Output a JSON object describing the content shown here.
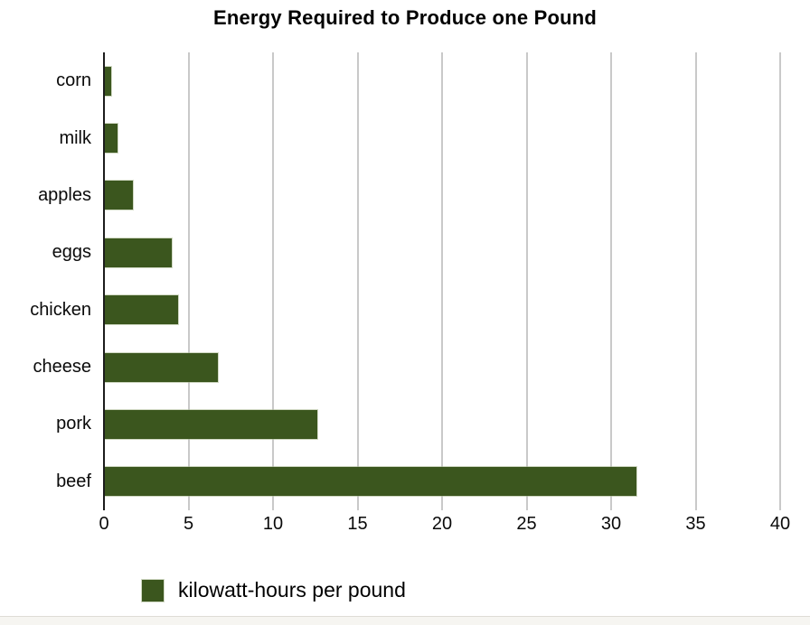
{
  "chart_data": {
    "type": "bar",
    "orientation": "horizontal",
    "title": "Energy Required to Produce one Pound",
    "categories": [
      "corn",
      "milk",
      "apples",
      "eggs",
      "chicken",
      "cheese",
      "pork",
      "beef"
    ],
    "values": [
      0.45,
      0.8,
      1.7,
      4.0,
      4.4,
      6.75,
      12.6,
      31.5
    ],
    "series_name": "kilowatt-hours per pound",
    "xlabel": "",
    "ylabel": "",
    "xlim": [
      0,
      40
    ],
    "xticks": [
      0,
      5,
      10,
      15,
      20,
      25,
      30,
      35,
      40
    ],
    "grid": "vertical-gridlines-on",
    "legend_position": "bottom-left",
    "bar_color": "#3b561e",
    "gridline_color": "#c9c9c9",
    "axis_color": "#1c1c1c",
    "title_color": "#000000",
    "label_color": "#0a0a0a"
  },
  "legend": {
    "label": "kilowatt-hours per pound",
    "swatch_color": "#3b561e"
  },
  "footer": {
    "strip_color": "#f6f5f1"
  }
}
